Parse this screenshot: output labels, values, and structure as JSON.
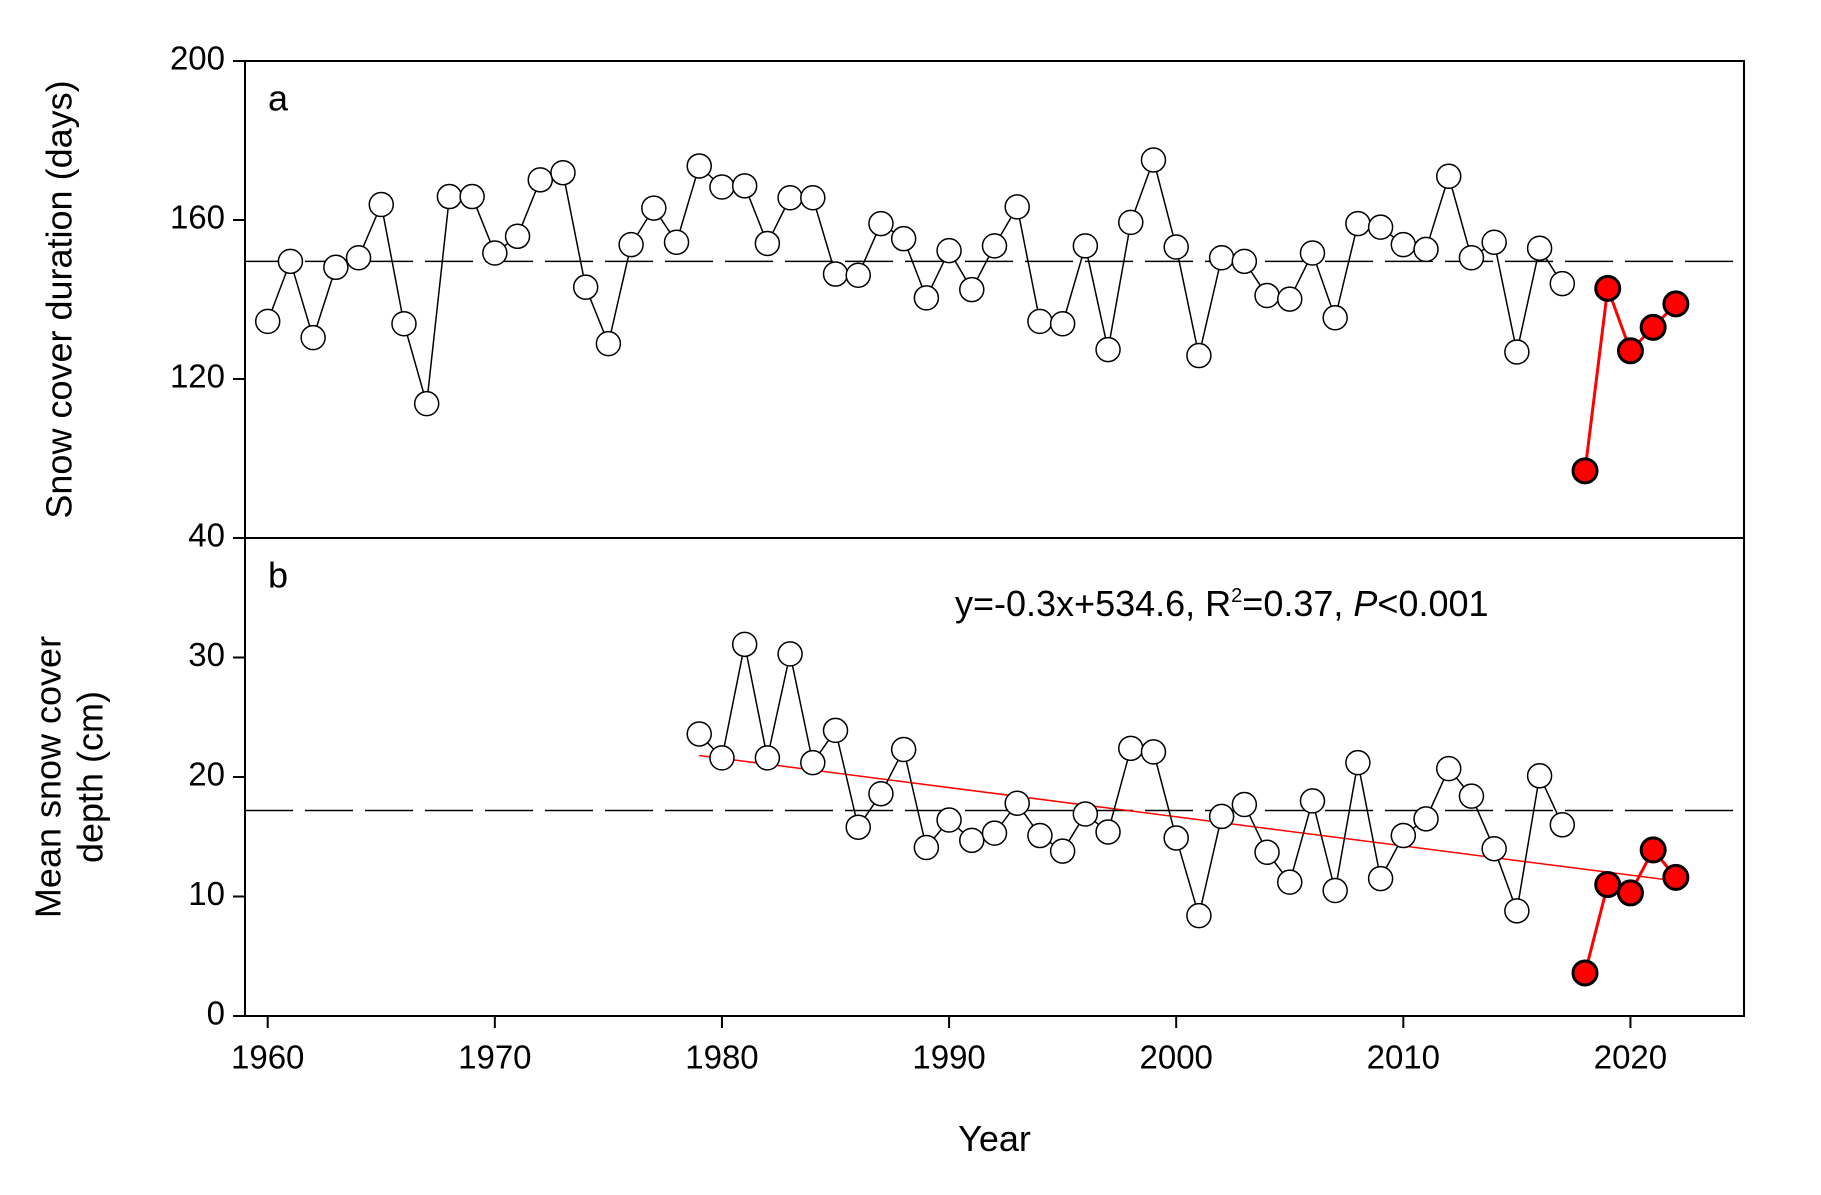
{
  "chart_data": [
    {
      "type": "line",
      "panel_label": "a",
      "ylabel": [
        "Snow cover duration (days)"
      ],
      "x": [
        1960,
        1961,
        1962,
        1963,
        1964,
        1965,
        1966,
        1967,
        1968,
        1969,
        1970,
        1971,
        1972,
        1973,
        1974,
        1975,
        1976,
        1977,
        1978,
        1979,
        1980,
        1981,
        1982,
        1983,
        1984,
        1985,
        1986,
        1987,
        1988,
        1989,
        1990,
        1991,
        1992,
        1993,
        1994,
        1995,
        1996,
        1997,
        1998,
        1999,
        2000,
        2001,
        2002,
        2003,
        2004,
        2005,
        2006,
        2007,
        2008,
        2009,
        2010,
        2011,
        2012,
        2013,
        2014,
        2015,
        2016,
        2017,
        2018,
        2019,
        2020,
        2021,
        2022
      ],
      "series": [
        {
          "color": "#000000",
          "marker_fill": "#ffffff",
          "values": [
            134.5,
            149.6,
            130.4,
            148.1,
            150.5,
            163.9,
            133.9,
            113.8,
            165.9,
            165.9,
            151.7,
            155.9,
            170.1,
            171.9,
            143.1,
            128.9,
            153.8,
            163.0,
            154.4,
            173.6,
            168.3,
            168.6,
            154.1,
            165.6,
            165.6,
            146.4,
            146.1,
            159.1,
            155.3,
            140.4,
            152.3,
            142.5,
            153.5,
            163.3,
            134.5,
            133.9,
            153.5,
            127.4,
            159.4,
            175.1,
            153.2,
            125.9,
            150.5,
            149.6,
            141.0,
            140.1,
            151.7,
            135.4,
            159.1,
            158.2,
            153.8,
            152.6,
            171.0,
            150.5,
            154.4,
            126.8,
            152.9,
            144.0,
            null,
            null,
            null,
            null,
            null
          ]
        },
        {
          "color": "#ff0000",
          "marker_fill": "#ff0000",
          "values": [
            null,
            null,
            null,
            null,
            null,
            null,
            null,
            null,
            null,
            null,
            null,
            null,
            null,
            null,
            null,
            null,
            null,
            null,
            null,
            null,
            null,
            null,
            null,
            null,
            null,
            null,
            null,
            null,
            null,
            null,
            null,
            null,
            null,
            null,
            null,
            null,
            null,
            null,
            null,
            null,
            null,
            null,
            null,
            null,
            null,
            null,
            null,
            null,
            null,
            null,
            null,
            null,
            null,
            null,
            null,
            null,
            null,
            null,
            96.9,
            142.8,
            127.1,
            133.0,
            138.9
          ]
        }
      ],
      "mean_line": 149.6,
      "xlim": [
        1959,
        2025
      ],
      "ylim": [
        80,
        200
      ],
      "yticks": [
        120,
        160,
        200
      ]
    },
    {
      "type": "line",
      "panel_label": "b",
      "ylabel": [
        "Mean snow cover",
        "depth (cm)"
      ],
      "xlabel": "Year",
      "annotation_parts": [
        "y=-0.3x+534.6, R",
        "2",
        "=0.37, ",
        "P",
        "<0.001"
      ],
      "x": [
        1979,
        1980,
        1981,
        1982,
        1983,
        1984,
        1985,
        1986,
        1987,
        1988,
        1989,
        1990,
        1991,
        1992,
        1993,
        1994,
        1995,
        1996,
        1997,
        1998,
        1999,
        2000,
        2001,
        2002,
        2003,
        2004,
        2005,
        2006,
        2007,
        2008,
        2009,
        2010,
        2011,
        2012,
        2013,
        2014,
        2015,
        2016,
        2017,
        2018,
        2019,
        2020,
        2021,
        2022
      ],
      "series": [
        {
          "color": "#000000",
          "marker_fill": "#ffffff",
          "values": [
            23.6,
            21.6,
            31.1,
            21.6,
            30.3,
            21.2,
            23.9,
            15.8,
            18.6,
            22.3,
            14.1,
            16.4,
            14.7,
            15.3,
            17.8,
            15.1,
            13.8,
            16.9,
            15.4,
            22.4,
            22.1,
            14.9,
            8.4,
            16.7,
            17.7,
            13.7,
            11.2,
            18.0,
            10.5,
            21.2,
            11.5,
            15.1,
            16.5,
            20.7,
            18.4,
            14.0,
            8.8,
            20.1,
            16.0,
            null,
            null,
            null,
            null,
            null
          ]
        },
        {
          "color": "#ff0000",
          "marker_fill": "#ff0000",
          "values": [
            null,
            null,
            null,
            null,
            null,
            null,
            null,
            null,
            null,
            null,
            null,
            null,
            null,
            null,
            null,
            null,
            null,
            null,
            null,
            null,
            null,
            null,
            null,
            null,
            null,
            null,
            null,
            null,
            null,
            null,
            null,
            null,
            null,
            null,
            null,
            null,
            null,
            null,
            null,
            3.6,
            11.0,
            10.3,
            13.9,
            11.6
          ]
        }
      ],
      "trend": {
        "color": "#ff0000",
        "x": [
          1979,
          2022
        ],
        "values": [
          21.8,
          11.3
        ]
      },
      "mean_line": 17.2,
      "xlim": [
        1959,
        2025
      ],
      "xticks": [
        1960,
        1970,
        1980,
        1990,
        2000,
        2010,
        2020
      ],
      "ylim": [
        0,
        40
      ],
      "yticks": [
        0,
        10,
        20,
        30,
        40
      ]
    }
  ]
}
